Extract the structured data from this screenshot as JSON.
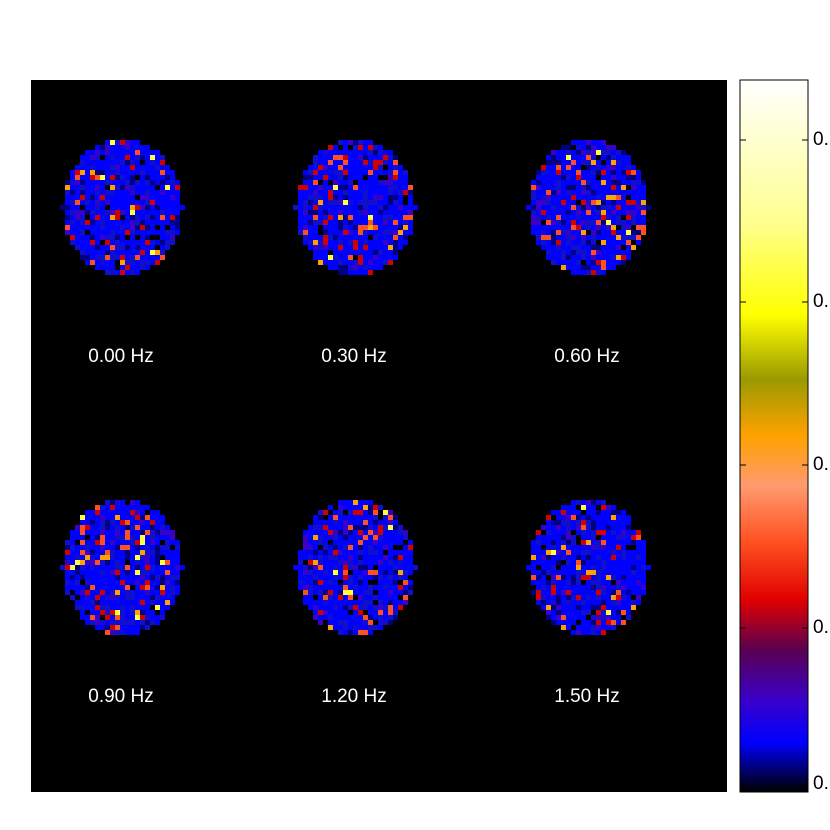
{
  "panels": [
    {
      "label": "0.00 Hz"
    },
    {
      "label": "0.30 Hz"
    },
    {
      "label": "0.60 Hz"
    },
    {
      "label": "0.90 Hz"
    },
    {
      "label": "1.20 Hz"
    },
    {
      "label": "1.50 Hz"
    }
  ],
  "colorbar": {
    "tick_labels": [
      "0.",
      "0.",
      "0.",
      "0.",
      "0."
    ]
  }
}
